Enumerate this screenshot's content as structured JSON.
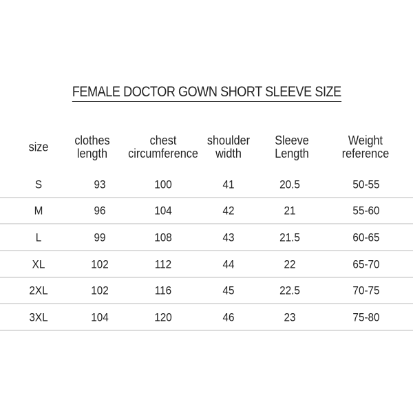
{
  "title": "FEMALE DOCTOR GOWN SHORT SLEEVE SIZE",
  "headers": [
    {
      "l1": "size",
      "l2": ""
    },
    {
      "l1": "clothes",
      "l2": "length"
    },
    {
      "l1": "chest",
      "l2": "circumference"
    },
    {
      "l1": "shoulder",
      "l2": "width"
    },
    {
      "l1": "Sleeve",
      "l2": "Length"
    },
    {
      "l1": "Weight",
      "l2": "reference"
    }
  ],
  "rows": [
    [
      "S",
      "93",
      "100",
      "41",
      "20.5",
      "50-55"
    ],
    [
      "M",
      "96",
      "104",
      "42",
      "21",
      "55-60"
    ],
    [
      "L",
      "99",
      "108",
      "43",
      "21.5",
      "60-65"
    ],
    [
      "XL",
      "102",
      "112",
      "44",
      "22",
      "65-70"
    ],
    [
      "2XL",
      "102",
      "116",
      "45",
      "22.5",
      "70-75"
    ],
    [
      "3XL",
      "104",
      "120",
      "46",
      "23",
      "75-80"
    ]
  ],
  "colors": {
    "text": "#222222",
    "divider": "#dcdcdc"
  }
}
